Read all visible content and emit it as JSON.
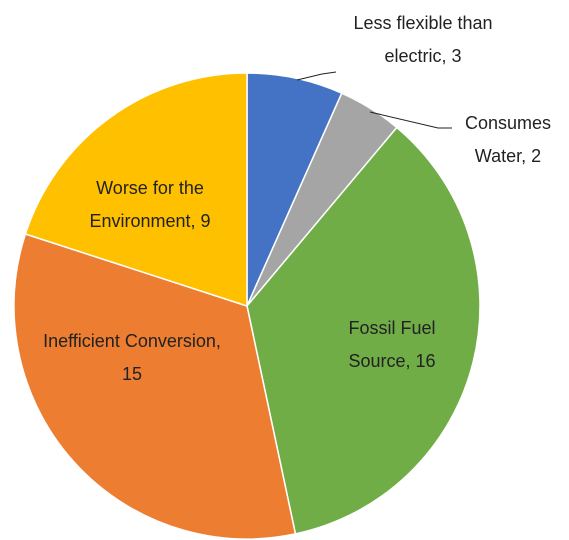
{
  "chart_data": {
    "type": "pie",
    "categories": [
      "Less flexible than electric",
      "Consumes Water",
      "Fossil Fuel Source",
      "Inefficient Conversion",
      "Worse for the Environment"
    ],
    "values": [
      3,
      2,
      16,
      15,
      9
    ],
    "colors": [
      "#4472c4",
      "#a5a5a5",
      "#70ad47",
      "#ed7d31",
      "#ffc000"
    ]
  }
}
